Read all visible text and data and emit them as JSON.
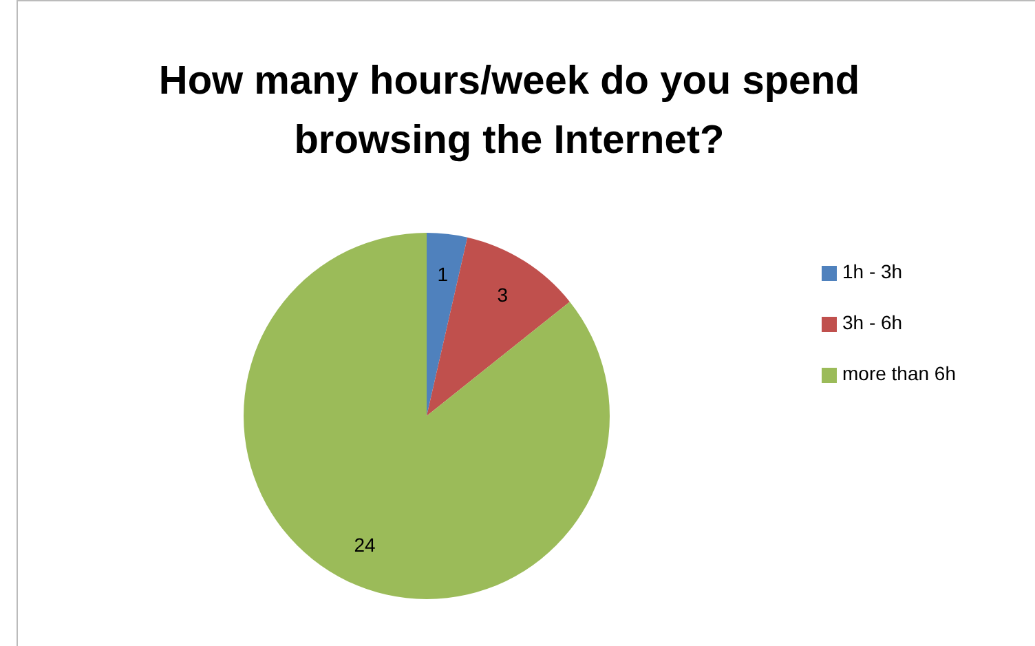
{
  "chart_data": {
    "type": "pie",
    "title": "How many hours/week do you spend browsing the Internet?",
    "categories": [
      "1h - 3h",
      "3h - 6h",
      "more than 6h"
    ],
    "values": [
      1,
      3,
      24
    ],
    "colors": [
      "#4f81bd",
      "#c0504d",
      "#9bbb59"
    ],
    "data_labels": true,
    "legend": "right"
  }
}
